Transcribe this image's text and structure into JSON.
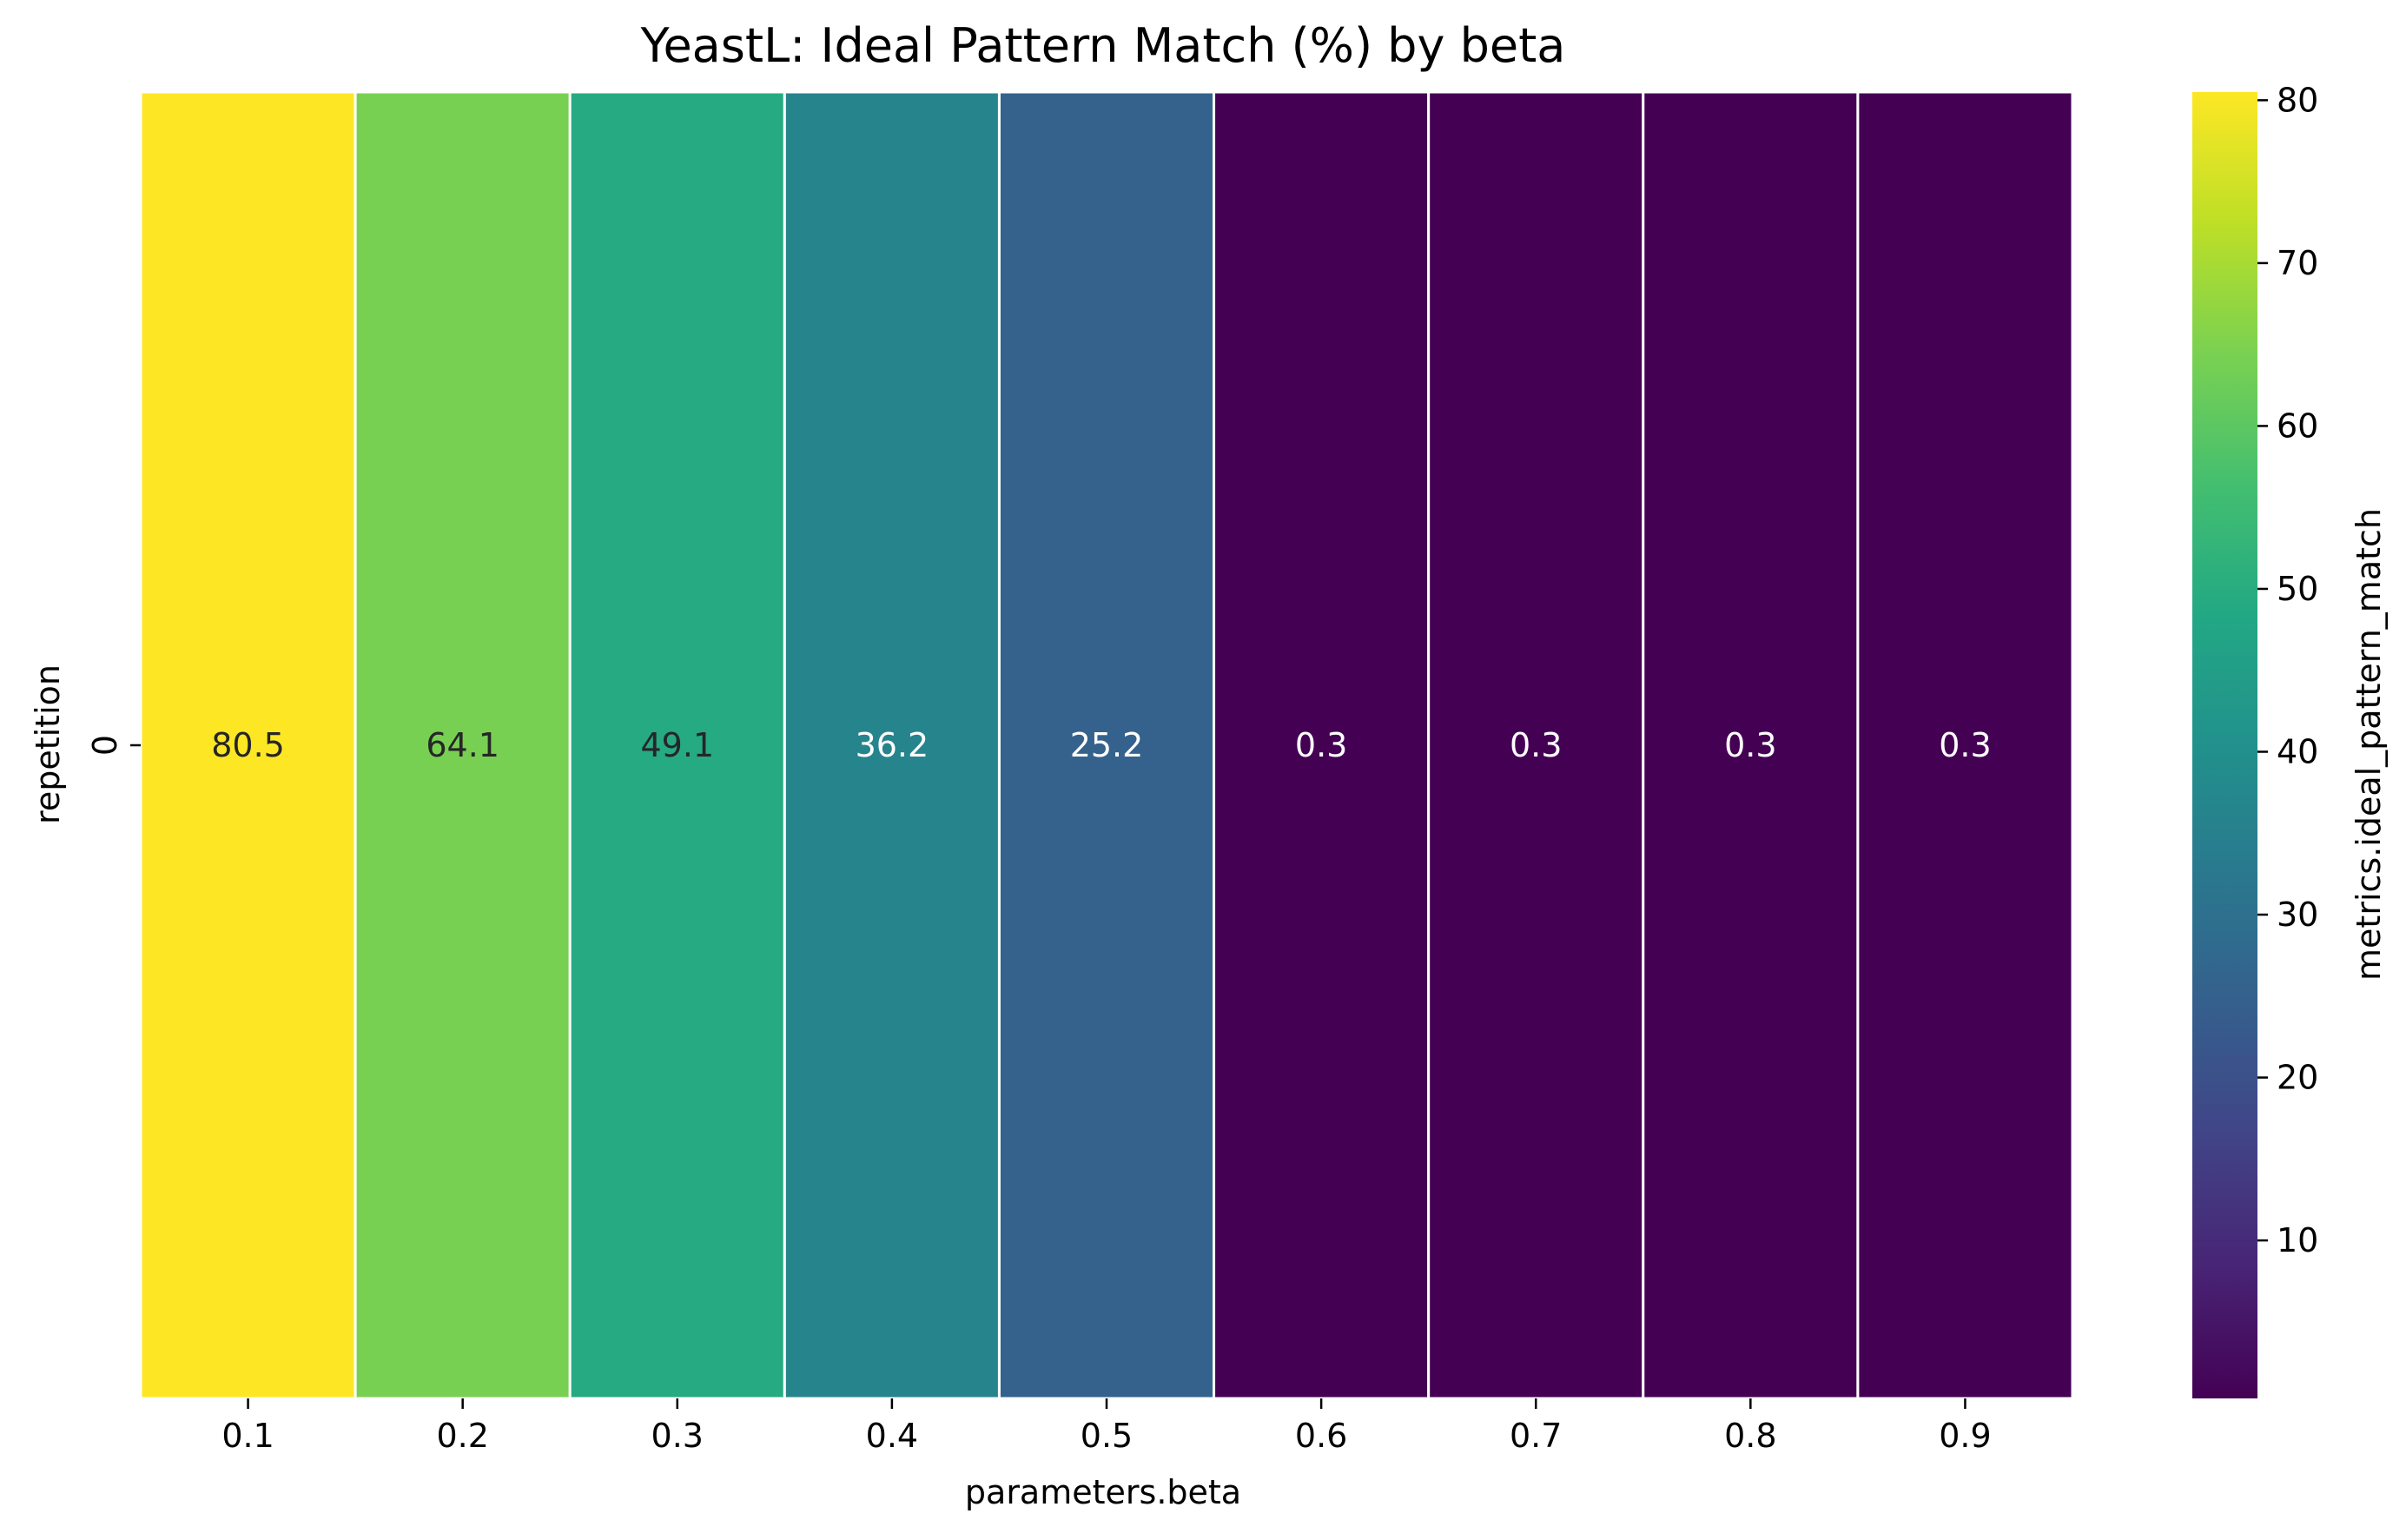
{
  "chart_data": {
    "type": "heatmap",
    "title": "YeastL: Ideal Pattern Match (%) by beta",
    "xlabel": "parameters.beta",
    "ylabel": "repetition",
    "x": [
      "0.1",
      "0.2",
      "0.3",
      "0.4",
      "0.5",
      "0.6",
      "0.7",
      "0.8",
      "0.9"
    ],
    "y": [
      "0"
    ],
    "values": [
      [
        80.5,
        64.1,
        49.1,
        36.2,
        25.2,
        0.3,
        0.3,
        0.3,
        0.3
      ]
    ],
    "annotations": [
      [
        "80.5",
        "64.1",
        "49.1",
        "36.2",
        "25.2",
        "0.3",
        "0.3",
        "0.3",
        "0.3"
      ]
    ],
    "colorbar": {
      "label": "metrics.ideal_pattern_match",
      "ticks": [
        10,
        20,
        30,
        40,
        50,
        60,
        70,
        80
      ],
      "range": [
        0.3,
        80.5
      ],
      "colormap": "viridis"
    },
    "cell_separator_color": "#ffffff",
    "dark_text_color": "#262626",
    "light_text_color": "#ffffff"
  }
}
